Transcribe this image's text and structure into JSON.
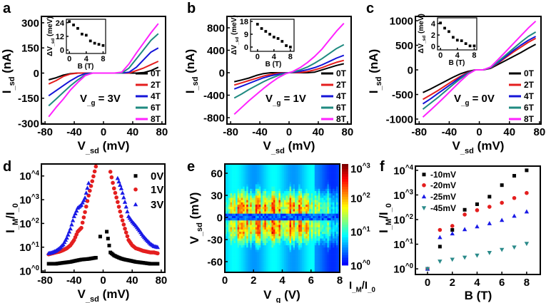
{
  "panel_letters": [
    "a",
    "b",
    "c",
    "d",
    "e",
    "f"
  ],
  "chart_data": [
    {
      "id": "a",
      "type": "line",
      "xlabel": "V_sd (mV)",
      "ylabel": "I_sd (nA)",
      "xlim": [
        -85,
        85
      ],
      "ylim": [
        -304,
        338
      ],
      "xticks": [
        -80,
        -40,
        0,
        40,
        80
      ],
      "xtick_labels": [
        "-80",
        "-40",
        "0",
        "40",
        "80"
      ],
      "yticks": [
        -300,
        -150,
        0,
        150,
        300
      ],
      "ytick_labels": [
        "-300",
        "-150",
        "0",
        "150",
        "300"
      ],
      "annotation": "V_g = 3V",
      "legend": "bottom-right",
      "x": [
        -75,
        -65,
        -55,
        -45,
        -35,
        -25,
        -15,
        -5,
        5,
        15,
        25,
        35,
        45,
        55,
        65,
        75
      ],
      "series": [
        {
          "name": "0T",
          "color": "#000000",
          "values": [
            -40,
            -28,
            -12,
            -3,
            0,
            0,
            0,
            0,
            0,
            0,
            0,
            0,
            0,
            3,
            15,
            35
          ]
        },
        {
          "name": "2T",
          "color": "#e41e1e",
          "values": [
            -65,
            -45,
            -20,
            -5,
            0,
            0,
            0,
            0,
            0,
            0,
            0,
            0,
            15,
            30,
            50,
            70
          ]
        },
        {
          "name": "4T",
          "color": "#1414d8",
          "values": [
            -135,
            -105,
            -75,
            -45,
            -20,
            -3,
            0,
            0,
            0,
            0,
            0,
            5,
            35,
            80,
            125,
            150
          ]
        },
        {
          "name": "6T",
          "color": "#1f8a80",
          "values": [
            -195,
            -155,
            -115,
            -75,
            -40,
            -10,
            0,
            0,
            0,
            0,
            0,
            30,
            85,
            140,
            195,
            235
          ]
        },
        {
          "name": "8T",
          "color": "#ff22ff",
          "values": [
            -260,
            -205,
            -155,
            -100,
            -55,
            -15,
            0,
            0,
            0,
            0,
            5,
            55,
            120,
            180,
            240,
            295
          ]
        }
      ],
      "inset": {
        "type": "scatter",
        "xlabel": "B (T)",
        "ylabel": "ΔV_sd (meV)",
        "xlim": [
          -0.7,
          8.6
        ],
        "ylim": [
          -3,
          27
        ],
        "xticks": [
          0,
          4,
          8
        ],
        "xtick_labels": [
          "0",
          "4",
          "8"
        ],
        "yticks": [
          0,
          12,
          24
        ],
        "ytick_labels": [
          "0",
          "12",
          "24"
        ],
        "x": [
          0,
          1,
          2,
          3,
          4,
          5,
          6,
          7,
          8
        ],
        "values": [
          25,
          22,
          19,
          14,
          13,
          8,
          6,
          5,
          4
        ]
      }
    },
    {
      "id": "b",
      "type": "line",
      "xlabel": "V_sd (mV)",
      "ylabel": "I_sd (nA)",
      "xlim": [
        -85,
        85
      ],
      "ylim": [
        -914,
        1003
      ],
      "xticks": [
        -80,
        -40,
        0,
        40,
        80
      ],
      "xtick_labels": [
        "-80",
        "-40",
        "0",
        "40",
        "80"
      ],
      "yticks": [
        -800,
        -400,
        0,
        400,
        800
      ],
      "ytick_labels": [
        "-800",
        "-400",
        "0",
        "400",
        "800"
      ],
      "annotation": "V_g = 1V",
      "legend": "bottom-right",
      "x": [
        -75,
        -65,
        -55,
        -45,
        -35,
        -25,
        -15,
        -5,
        5,
        15,
        25,
        35,
        45,
        55,
        65,
        75
      ],
      "series": [
        {
          "name": "0T",
          "color": "#000000",
          "values": [
            -160,
            -130,
            -95,
            -50,
            -15,
            0,
            0,
            0,
            0,
            0,
            0,
            10,
            50,
            90,
            130,
            160
          ]
        },
        {
          "name": "2T",
          "color": "#e41e1e",
          "values": [
            -220,
            -180,
            -140,
            -100,
            -60,
            -30,
            -10,
            0,
            0,
            5,
            20,
            50,
            90,
            140,
            185,
            220
          ]
        },
        {
          "name": "4T",
          "color": "#1414d8",
          "values": [
            -290,
            -240,
            -190,
            -140,
            -90,
            -55,
            -25,
            -5,
            5,
            25,
            55,
            90,
            140,
            200,
            260,
            310
          ]
        },
        {
          "name": "6T",
          "color": "#1f8a80",
          "values": [
            -450,
            -380,
            -300,
            -230,
            -160,
            -100,
            -50,
            -10,
            10,
            50,
            100,
            170,
            250,
            340,
            430,
            500
          ]
        },
        {
          "name": "8T",
          "color": "#ff22ff",
          "values": [
            -740,
            -620,
            -500,
            -390,
            -280,
            -180,
            -90,
            -20,
            20,
            90,
            180,
            290,
            420,
            580,
            740,
            880
          ]
        }
      ],
      "inset": {
        "type": "scatter",
        "xlabel": "B (T)",
        "ylabel": "ΔV_sd (meV)",
        "xlim": [
          -1.7,
          8.9
        ],
        "ylim": [
          -3,
          19.5
        ],
        "xticks": [
          0,
          4,
          8
        ],
        "xtick_labels": [
          "0",
          "4",
          "8"
        ],
        "yticks": [
          0,
          9,
          18
        ],
        "ytick_labels": [
          "0",
          "9",
          "18"
        ],
        "x": [
          0,
          1,
          2,
          3,
          4,
          5,
          6,
          7,
          8
        ],
        "values": [
          16,
          13,
          11,
          9,
          7,
          6,
          4,
          1,
          0
        ]
      }
    },
    {
      "id": "c",
      "type": "line",
      "xlabel": "V_sd (mV)",
      "ylabel": "I_sd (nA)",
      "xlim": [
        -85,
        82
      ],
      "ylim": [
        -1101,
        1087
      ],
      "xticks": [
        -80,
        -40,
        0,
        40,
        80
      ],
      "xtick_labels": [
        "-80",
        "-40",
        "0",
        "40",
        "80"
      ],
      "yticks": [
        -1000,
        -500,
        0,
        500,
        1000
      ],
      "ytick_labels": [
        "-1000",
        "-500",
        "0",
        "500",
        "1000"
      ],
      "annotation": "V_g = 0V",
      "legend": "bottom-right",
      "x": [
        -75,
        -65,
        -55,
        -45,
        -35,
        -25,
        -15,
        -5,
        5,
        15,
        25,
        35,
        45,
        55,
        65,
        75
      ],
      "series": [
        {
          "name": "0T",
          "color": "#000000",
          "values": [
            -460,
            -390,
            -310,
            -230,
            -150,
            -80,
            -30,
            0,
            0,
            30,
            110,
            190,
            270,
            350,
            440,
            520
          ]
        },
        {
          "name": "2T",
          "color": "#e41e1e",
          "values": [
            -600,
            -510,
            -420,
            -320,
            -220,
            -130,
            -50,
            0,
            0,
            40,
            140,
            250,
            360,
            460,
            560,
            640
          ]
        },
        {
          "name": "4T",
          "color": "#1414d8",
          "values": [
            -690,
            -590,
            -480,
            -370,
            -260,
            -150,
            -60,
            0,
            0,
            45,
            150,
            270,
            390,
            500,
            600,
            680
          ]
        },
        {
          "name": "6T",
          "color": "#1f8a80",
          "values": [
            -800,
            -680,
            -560,
            -430,
            -300,
            -180,
            -70,
            0,
            0,
            50,
            170,
            300,
            430,
            560,
            680,
            770
          ]
        },
        {
          "name": "8T",
          "color": "#ff22ff",
          "values": [
            -960,
            -820,
            -680,
            -530,
            -380,
            -230,
            -90,
            0,
            0,
            60,
            210,
            370,
            530,
            690,
            850,
            990
          ]
        }
      ],
      "inset": {
        "type": "scatter",
        "xlabel": "B (T)",
        "ylabel": "ΔV_sd (meV)",
        "xlim": [
          -0.7,
          8.6
        ],
        "ylim": [
          -0.6,
          5
        ],
        "xticks": [
          0,
          4,
          8
        ],
        "xtick_labels": [
          "0",
          "4",
          "8"
        ],
        "yticks": [
          0,
          2,
          4
        ],
        "ytick_labels": [
          "0",
          "2",
          "4"
        ],
        "x": [
          0,
          1,
          2,
          3,
          4,
          5,
          6,
          7,
          8
        ],
        "values": [
          4.1,
          3.2,
          2.6,
          1.6,
          1.1,
          1.0,
          0.5,
          0.1,
          0.1
        ]
      }
    },
    {
      "id": "d",
      "type": "scatter",
      "yscale": "log",
      "xlabel": "V_sd (mV)",
      "ylabel": "I_M/I_0",
      "xlim": [
        -85,
        85
      ],
      "ylim": [
        0.87,
        32000
      ],
      "xticks": [
        -80,
        -40,
        0,
        40,
        80
      ],
      "xtick_labels": [
        "-80",
        "-40",
        "0",
        "40",
        "80"
      ],
      "yticks": [
        1,
        10,
        100,
        1000,
        10000
      ],
      "ytick_labels": [
        "10^0",
        "10^1",
        "10^2",
        "10^3",
        "10^4"
      ],
      "legend": "top-right",
      "series": [
        {
          "name": "0V",
          "color": "#000000",
          "marker": "square",
          "x": [
            -75,
            -70,
            -65,
            -60,
            -55,
            -50,
            -45,
            -40,
            -35,
            -30,
            -25,
            -20,
            -15,
            -10,
            -4,
            5,
            10,
            15,
            20,
            25,
            30,
            35,
            40,
            45,
            50,
            55,
            60,
            65,
            70,
            75
          ],
          "values": [
            2,
            2,
            2,
            2.1,
            2.2,
            2.3,
            2.4,
            2.6,
            2.8,
            3,
            3.1,
            3.2,
            3.4,
            3.6,
            28,
            45,
            6,
            4.5,
            3.8,
            3.3,
            3,
            2.8,
            2.6,
            2.4,
            2.3,
            2.2,
            2.1,
            2,
            2,
            2
          ]
        },
        {
          "name": "1V",
          "color": "#e41e1e",
          "marker": "circle",
          "x": [
            -75,
            -70,
            -65,
            -60,
            -55,
            -50,
            -45,
            -40,
            -35,
            -30,
            -25,
            -20,
            -15,
            -10,
            10,
            15,
            20,
            25,
            30,
            35,
            40,
            45,
            50,
            55,
            60,
            65,
            70,
            75
          ],
          "values": [
            5,
            5.5,
            6,
            6.5,
            7.5,
            9,
            12,
            20,
            45,
            65,
            300,
            1500,
            6000,
            25000,
            15000,
            3000,
            800,
            200,
            60,
            20,
            12,
            9,
            8,
            7,
            6.5,
            6,
            6,
            5.5
          ]
        },
        {
          "name": "3V",
          "color": "#1a1ae6",
          "marker": "triangle",
          "x": [
            -75,
            -70,
            -65,
            -60,
            -55,
            -50,
            -45,
            -40,
            -35,
            -30,
            -25,
            -20,
            20,
            25,
            30,
            35,
            40,
            45,
            50,
            55,
            60,
            65,
            70,
            75
          ],
          "values": [
            5.5,
            6,
            7,
            9,
            13,
            25,
            60,
            200,
            450,
            600,
            1200,
            5000,
            8000,
            3000,
            800,
            200,
            120,
            80,
            50,
            30,
            20,
            14,
            11,
            10
          ]
        }
      ]
    },
    {
      "id": "e",
      "type": "heatmap",
      "xlabel": "V_g (V)",
      "ylabel": "V_sd (mV)",
      "xlim": [
        0,
        8
      ],
      "ylim": [
        -74.5,
        72.6
      ],
      "xticks": [
        0,
        2,
        4,
        6,
        8
      ],
      "xtick_labels": [
        "0",
        "2",
        "4",
        "6",
        "8"
      ],
      "yticks": [
        -60,
        -30,
        0,
        30,
        60
      ],
      "ytick_labels": [
        "-60",
        "-30",
        "0",
        "30",
        "60"
      ],
      "colorbar": {
        "label": "I_M/I_0",
        "range": [
          1,
          1000
        ],
        "scale": "log",
        "colormap": "jet",
        "ticks": [
          1000,
          100,
          10,
          1
        ],
        "tick_labels": [
          "10^3",
          "10^2",
          "10^1",
          "10^0"
        ]
      },
      "peak_log_ratio_vs_vg": {
        "vg": [
          0,
          0.5,
          1,
          1.5,
          2,
          2.5,
          3,
          3.5,
          4,
          4.5,
          5,
          5.5,
          6,
          6.5,
          7,
          7.5,
          8
        ],
        "values": [
          1.5,
          2.2,
          2.8,
          2.9,
          3,
          2.9,
          3,
          3,
          3,
          2.9,
          2.8,
          2.7,
          2.5,
          2.2,
          1.8,
          1.7,
          1.2
        ]
      }
    },
    {
      "id": "f",
      "type": "scatter",
      "yscale": "log",
      "xlabel": "B (T)",
      "ylabel": "I_M/I_0",
      "xlim": [
        -0.98,
        9.1
      ],
      "ylim": [
        0.59,
        14800
      ],
      "xticks": [
        0,
        2,
        4,
        6,
        8
      ],
      "xtick_labels": [
        "0",
        "2",
        "4",
        "6",
        "8"
      ],
      "yticks": [
        1,
        10,
        100,
        1000,
        10000
      ],
      "ytick_labels": [
        "10^0",
        "10^1",
        "10^2",
        "10^3",
        "10^4"
      ],
      "legend": "top-left",
      "x": [
        0,
        1,
        2,
        3,
        4,
        5,
        6,
        7,
        8
      ],
      "series": [
        {
          "name": "-10mV",
          "color": "#000000",
          "marker": "square",
          "values": [
            1,
            8,
            38,
            250,
            420,
            850,
            2500,
            6000,
            10000
          ]
        },
        {
          "name": "-20mV",
          "color": "#e41e1e",
          "marker": "circle",
          "values": [
            1,
            38,
            55,
            160,
            240,
            330,
            480,
            750,
            1200
          ]
        },
        {
          "name": "-25mV",
          "color": "#1a1ae6",
          "marker": "triangle",
          "values": [
            1,
            19,
            27,
            40,
            52,
            70,
            95,
            140,
            210
          ]
        },
        {
          "name": "-45mV",
          "color": "#2a8a8a",
          "marker": "triangle-down",
          "values": [
            1,
            2,
            2.4,
            2.9,
            3.5,
            4.5,
            6,
            7.5,
            10.5
          ]
        }
      ]
    }
  ]
}
